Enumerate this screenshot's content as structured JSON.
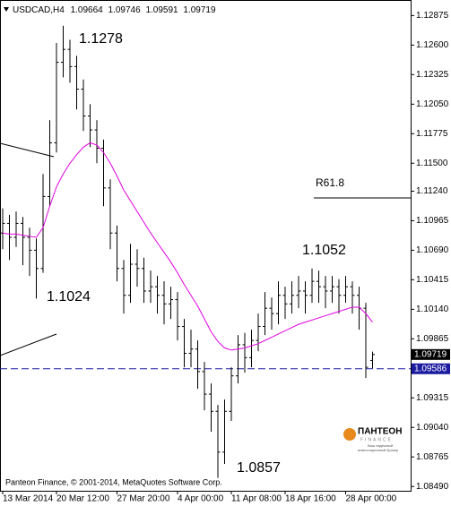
{
  "chart_data": {
    "type": "ohlc",
    "symbol": "USDCAD,H4",
    "color": "#000000",
    "categories": [
      "13 Mar 2014",
      null,
      null,
      null,
      null,
      null,
      null,
      null,
      "20 Mar 12:00",
      null,
      null,
      null,
      null,
      null,
      null,
      null,
      null,
      "27 Mar 20:00",
      null,
      null,
      null,
      null,
      null,
      null,
      null,
      null,
      "4 Apr 00:00",
      null,
      null,
      null,
      null,
      null,
      null,
      null,
      "11 Apr 08:00",
      null,
      null,
      null,
      null,
      null,
      null,
      null,
      "18 Apr 16:00",
      null,
      null,
      null,
      null,
      null,
      null,
      null,
      null,
      "28 Apr 00:00",
      null,
      null,
      null,
      null
    ],
    "open": [
      1.1085,
      1.1094,
      1.1081,
      1.1094,
      1.1081,
      1.1069,
      1.1052,
      1.1119,
      1.1169,
      1.1244,
      1.1256,
      1.124,
      1.1219,
      1.1194,
      1.1181,
      1.1164,
      1.1127,
      1.1085,
      1.1052,
      1.1027,
      1.1056,
      1.1052,
      1.1031,
      1.1035,
      1.1027,
      1.1019,
      1.1023,
      1.0998,
      1.0973,
      1.0977,
      1.0956,
      1.0935,
      1.0919,
      1.0881,
      1.0919,
      1.0952,
      1.0981,
      1.0969,
      1.0985,
      1.0998,
      1.1015,
      1.101,
      1.1027,
      1.1019,
      1.1027,
      1.1031,
      1.1027,
      1.104,
      1.1035,
      1.1031,
      1.1035,
      1.1027,
      1.1035,
      1.1027,
      1.1015,
      1.09664
    ],
    "high": [
      1.1108,
      1.1102,
      1.1105,
      1.11,
      1.109,
      1.108,
      1.114,
      1.119,
      1.1262,
      1.1278,
      1.1265,
      1.125,
      1.1228,
      1.1205,
      1.119,
      1.1172,
      1.1135,
      1.1092,
      1.106,
      1.1075,
      1.107,
      1.1062,
      1.105,
      1.1045,
      1.104,
      1.1035,
      1.103,
      1.1005,
      1.0995,
      1.0985,
      1.0965,
      1.0945,
      1.0925,
      1.093,
      1.096,
      1.099,
      1.0992,
      1.0995,
      1.101,
      1.103,
      1.1025,
      1.104,
      1.1035,
      1.104,
      1.1045,
      1.104,
      1.1052,
      1.105,
      1.1045,
      1.1045,
      1.1042,
      1.1045,
      1.104,
      1.1035,
      1.102,
      1.09746
    ],
    "low": [
      1.107,
      1.106,
      1.1072,
      1.1055,
      1.1045,
      1.1024,
      1.1048,
      1.111,
      1.116,
      1.123,
      1.1225,
      1.12,
      1.118,
      1.1165,
      1.115,
      1.111,
      1.107,
      1.104,
      1.101,
      1.102,
      1.1035,
      1.102,
      1.102,
      1.101,
      1.1,
      1.1005,
      1.0985,
      1.096,
      1.096,
      1.094,
      1.092,
      1.09,
      1.0857,
      1.087,
      1.091,
      1.0945,
      1.0955,
      1.096,
      1.0975,
      1.099,
      1.0995,
      1.1,
      1.1005,
      1.101,
      1.1015,
      1.101,
      1.102,
      1.102,
      1.1015,
      1.102,
      1.101,
      1.102,
      1.101,
      1.0995,
      1.095,
      1.09591
    ],
    "close": [
      1.1094,
      1.1081,
      1.1094,
      1.1081,
      1.1069,
      1.1052,
      1.1119,
      1.1169,
      1.1244,
      1.1256,
      1.124,
      1.1219,
      1.1194,
      1.1181,
      1.1164,
      1.1127,
      1.1085,
      1.1052,
      1.1027,
      1.1056,
      1.1052,
      1.1031,
      1.1035,
      1.1027,
      1.1019,
      1.1023,
      1.0998,
      1.0973,
      1.0977,
      1.0956,
      1.0935,
      1.0919,
      1.0881,
      1.0919,
      1.0952,
      1.0981,
      1.0969,
      1.0985,
      1.0998,
      1.1015,
      1.101,
      1.1027,
      1.1019,
      1.1027,
      1.1031,
      1.1027,
      1.104,
      1.1035,
      1.1031,
      1.1035,
      1.1027,
      1.1035,
      1.1027,
      1.1015,
      1.096,
      1.09719
    ],
    "ma": {
      "color": "#e000e0",
      "values": [
        1.1085,
        1.1084,
        1.1084,
        1.1083,
        1.1082,
        1.1081,
        1.109,
        1.111,
        1.1128,
        1.114,
        1.115,
        1.1158,
        1.1165,
        1.1169,
        1.1167,
        1.116,
        1.115,
        1.1138,
        1.1125,
        1.1115,
        1.1105,
        1.1095,
        1.1085,
        1.1076,
        1.1067,
        1.1058,
        1.1048,
        1.1037,
        1.1027,
        1.1017,
        1.1005,
        1.0993,
        1.0984,
        1.0978,
        1.0976,
        1.0977,
        1.0978,
        1.098,
        1.0982,
        1.0985,
        1.0988,
        1.0991,
        1.0994,
        1.0997,
        1.1,
        1.1002,
        1.1004,
        1.1006,
        1.1008,
        1.101,
        1.1012,
        1.1014,
        1.1016,
        1.1016,
        1.101,
        1.1002
      ]
    },
    "ylim": [
      1.0845,
      1.1302
    ],
    "yticks": [
      1.12875,
      {
        "value": 1.126,
        "label": "1.12600"
      },
      1.12325,
      {
        "value": 1.1205,
        "label": "1.12050"
      },
      1.11775,
      {
        "value": 1.115,
        "label": "1.11500"
      },
      {
        "value": 1.1124,
        "label": "1.11240"
      },
      1.10965,
      {
        "value": 1.1069,
        "label": "1.10690"
      },
      1.10415,
      {
        "value": 1.1014,
        "label": "1.10140"
      },
      1.09865,
      1.09315,
      {
        "value": 1.0904,
        "label": "1.09040"
      },
      1.08765,
      {
        "value": 1.0849,
        "label": "1.08490"
      }
    ],
    "current_price": {
      "value": 1.09719,
      "color": "#000000"
    },
    "hline": {
      "value": 1.09586,
      "color": "#1c1ca0"
    },
    "annotations": [
      "1.1278",
      "1.1024",
      "1.1052",
      "1.0857",
      "R61.8"
    ],
    "copyright": "Panteon Finance, © 2001-2014, MetaQuotes Software Corp.",
    "logo": {
      "name": "ПАНТЕОН",
      "sub": "FINANCE",
      "tagline": [
        "Ваш надежный",
        "инвестиционный брокер"
      ]
    }
  }
}
